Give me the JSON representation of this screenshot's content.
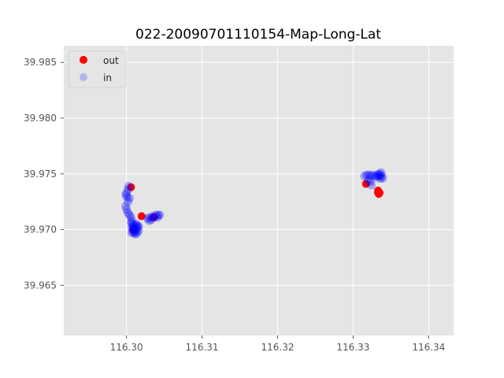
{
  "chart_data": {
    "type": "scatter",
    "title": "022-20090701110154-Map-Long-Lat",
    "xlabel": "",
    "ylabel": "",
    "xlim": [
      116.2917,
      116.3433
    ],
    "ylim": [
      39.9605,
      39.9865
    ],
    "grid": true,
    "legend_position": "top-left",
    "x_ticks": [
      {
        "value": 116.3,
        "label": "116.30"
      },
      {
        "value": 116.31,
        "label": "116.31"
      },
      {
        "value": 116.32,
        "label": "116.32"
      },
      {
        "value": 116.33,
        "label": "116.33"
      },
      {
        "value": 116.34,
        "label": "116.34"
      }
    ],
    "y_ticks": [
      {
        "value": 39.965,
        "label": "39.965"
      },
      {
        "value": 39.97,
        "label": "39.970"
      },
      {
        "value": 39.975,
        "label": "39.975"
      },
      {
        "value": 39.98,
        "label": "39.980"
      },
      {
        "value": 39.985,
        "label": "39.985"
      }
    ],
    "series": [
      {
        "name": "out",
        "color": "#ff0000",
        "points": [
          [
            116.3006,
            39.9738
          ],
          [
            116.302,
            39.9712
          ],
          [
            116.3317,
            39.9741
          ],
          [
            116.3333,
            39.9735
          ],
          [
            116.3334,
            39.9732
          ],
          [
            116.3335,
            39.9733
          ],
          [
            116.3333,
            39.9733
          ],
          [
            116.3009,
            39.97
          ],
          [
            116.3036,
            39.9711
          ]
        ]
      },
      {
        "name": "in",
        "color": "#0000ff",
        "legend_color": "#b3b3ee",
        "points": [
          [
            116.3003,
            39.9739
          ],
          [
            116.3002,
            39.9736
          ],
          [
            116.3,
            39.9733
          ],
          [
            116.2999,
            39.9731
          ],
          [
            116.3001,
            39.9729
          ],
          [
            116.3004,
            39.9728
          ],
          [
            116.3002,
            39.9725
          ],
          [
            116.2999,
            39.9721
          ],
          [
            116.3,
            39.9718
          ],
          [
            116.3002,
            39.9715
          ],
          [
            116.3004,
            39.9713
          ],
          [
            116.3006,
            39.9711
          ],
          [
            116.3007,
            39.9708
          ],
          [
            116.3008,
            39.9705
          ],
          [
            116.3007,
            39.9702
          ],
          [
            116.3008,
            39.9699
          ],
          [
            116.301,
            39.9697
          ],
          [
            116.3012,
            39.9696
          ],
          [
            116.3014,
            39.9697
          ],
          [
            116.3016,
            39.9699
          ],
          [
            116.3015,
            39.9702
          ],
          [
            116.3013,
            39.9705
          ],
          [
            116.3011,
            39.9704
          ],
          [
            116.3009,
            39.9701
          ],
          [
            116.3012,
            39.97
          ],
          [
            116.3014,
            39.9703
          ],
          [
            116.3011,
            39.9698
          ],
          [
            116.3009,
            39.9703
          ],
          [
            116.3006,
            39.9706
          ],
          [
            116.3007,
            39.9697
          ],
          [
            116.3013,
            39.9701
          ],
          [
            116.3016,
            39.9703
          ],
          [
            116.3028,
            39.971
          ],
          [
            116.303,
            39.9708
          ],
          [
            116.3033,
            39.9709
          ],
          [
            116.3036,
            39.9711
          ],
          [
            116.3039,
            39.9713
          ],
          [
            116.3042,
            39.9713
          ],
          [
            116.3044,
            39.9713
          ],
          [
            116.3041,
            39.9711
          ],
          [
            116.3035,
            39.9712
          ],
          [
            116.3031,
            39.9711
          ],
          [
            116.3315,
            39.9748
          ],
          [
            116.3318,
            39.9749
          ],
          [
            116.3321,
            39.9749
          ],
          [
            116.3323,
            39.9748
          ],
          [
            116.3326,
            39.9749
          ],
          [
            116.3329,
            39.9748
          ],
          [
            116.3331,
            39.9747
          ],
          [
            116.3334,
            39.9748
          ],
          [
            116.3336,
            39.9749
          ],
          [
            116.3337,
            39.9751
          ],
          [
            116.3338,
            39.9748
          ],
          [
            116.3339,
            39.9746
          ],
          [
            116.3336,
            39.9746
          ],
          [
            116.3323,
            39.9743
          ],
          [
            116.3324,
            39.974
          ],
          [
            116.332,
            39.9744
          ],
          [
            116.3334,
            39.975
          ],
          [
            116.3332,
            39.9749
          ]
        ]
      }
    ]
  }
}
